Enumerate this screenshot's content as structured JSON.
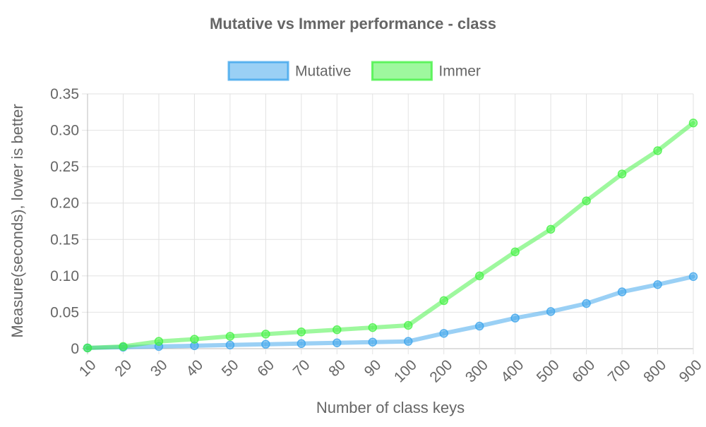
{
  "chart_data": {
    "type": "line",
    "title": "Mutative vs Immer performance - class",
    "xlabel": "Number of class keys",
    "ylabel": "Measure(seconds), lower is better",
    "categories": [
      "10",
      "20",
      "30",
      "40",
      "50",
      "60",
      "70",
      "80",
      "90",
      "100",
      "200",
      "300",
      "400",
      "500",
      "600",
      "700",
      "800",
      "900"
    ],
    "ylim": [
      0,
      0.35
    ],
    "yticks": [
      "0",
      "0.05",
      "0.10",
      "0.15",
      "0.20",
      "0.25",
      "0.30",
      "0.35"
    ],
    "grid": true,
    "legend_position": "top",
    "series": [
      {
        "name": "Mutative",
        "color": "#36a2eb",
        "values": [
          0.001,
          0.002,
          0.003,
          0.004,
          0.005,
          0.006,
          0.007,
          0.008,
          0.009,
          0.01,
          0.021,
          0.031,
          0.042,
          0.051,
          0.062,
          0.078,
          0.088,
          0.099
        ]
      },
      {
        "name": "Immer",
        "color": "#3ef23e",
        "values": [
          0.001,
          0.003,
          0.01,
          0.013,
          0.017,
          0.02,
          0.023,
          0.026,
          0.029,
          0.032,
          0.066,
          0.1,
          0.133,
          0.164,
          0.203,
          0.24,
          0.272,
          0.31
        ]
      }
    ]
  }
}
